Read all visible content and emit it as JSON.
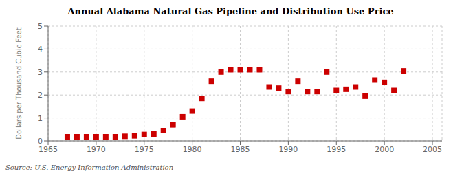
{
  "chart_data": {
    "type": "scatter",
    "title": "Annual Alabama Natural Gas Pipeline and Distribution Use Price",
    "ylabel": "Dollars per Thousand Cubic Feet",
    "annotations": [
      "Source: U.S. Energy Information Administration"
    ],
    "x": [
      1967,
      1968,
      1969,
      1970,
      1971,
      1972,
      1973,
      1974,
      1975,
      1976,
      1977,
      1978,
      1979,
      1980,
      1981,
      1982,
      1983,
      1984,
      1985,
      1986,
      1987,
      1988,
      1989,
      1990,
      1991,
      1992,
      1993,
      1994,
      1995,
      1996,
      1997,
      1998,
      1999,
      2000,
      2001,
      2002
    ],
    "values": [
      0.18,
      0.18,
      0.18,
      0.18,
      0.18,
      0.18,
      0.2,
      0.22,
      0.28,
      0.3,
      0.45,
      0.7,
      1.05,
      1.3,
      1.85,
      2.6,
      3.0,
      3.1,
      3.1,
      3.1,
      3.1,
      2.35,
      2.3,
      2.15,
      2.6,
      2.15,
      2.15,
      3.0,
      2.2,
      2.25,
      2.35,
      1.95,
      2.65,
      2.55,
      2.2,
      3.05
    ],
    "color": "#cc0000",
    "marker": "square",
    "xlim": [
      1965,
      2006
    ],
    "ylim": [
      0,
      5
    ],
    "xticks": [
      1965,
      1970,
      1975,
      1980,
      1985,
      1990,
      1995,
      2000,
      2005
    ],
    "yticks": [
      0,
      1,
      2,
      3,
      4,
      5
    ],
    "grid": true
  }
}
